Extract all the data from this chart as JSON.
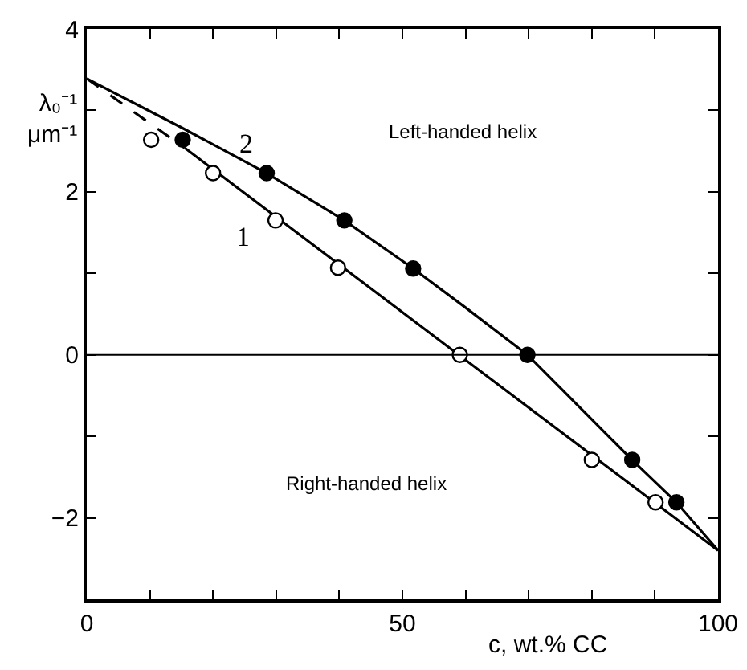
{
  "chart_data": {
    "type": "scatter",
    "ylabel": "λ₀⁻¹ μm⁻¹",
    "xlabel": "c, wt.% CC",
    "xlim": [
      0,
      100
    ],
    "ylim": [
      -3,
      4
    ],
    "xticks": [
      0,
      {
        "value": 10,
        "label": null
      },
      {
        "value": 20,
        "label": null
      },
      {
        "value": 30,
        "label": null
      },
      {
        "value": 40,
        "label": null
      },
      50,
      {
        "value": 60,
        "label": null
      },
      {
        "value": 70,
        "label": null
      },
      {
        "value": 80,
        "label": null
      },
      {
        "value": 90,
        "label": null
      },
      100
    ],
    "yticks": [
      {
        "value": -3,
        "label": null
      },
      -2,
      {
        "value": -1,
        "label": null
      },
      0,
      {
        "value": 1,
        "label": null
      },
      2,
      {
        "value": 3,
        "label": null
      },
      4
    ],
    "grid": false,
    "series": [
      {
        "type": "line",
        "color": "#000000",
        "line_style": "dashed",
        "marker": "none",
        "x": [
          0,
          15.5
        ],
        "values": [
          3.39,
          2.54
        ]
      },
      {
        "type": "line",
        "color": "#000000",
        "line_style": "solid",
        "marker": "none",
        "x": [
          15.5,
          59.1,
          100
        ],
        "values": [
          2.54,
          -0.01,
          -2.4
        ]
      },
      {
        "type": "line",
        "color": "#000000",
        "line_style": "solid",
        "marker": "none",
        "x": [
          0,
          15,
          28.5,
          40.8,
          51.7,
          60,
          69.8,
          86.4,
          93.4,
          100
        ],
        "values": [
          3.39,
          2.79,
          2.23,
          1.65,
          1.06,
          0.58,
          0,
          -1.29,
          -1.81,
          -2.4
        ]
      },
      {
        "color": "#ffffff",
        "marker": "circle",
        "x": [
          10.2,
          20,
          29.9,
          39.8,
          59.1,
          80,
          90.1
        ],
        "values": [
          2.64,
          2.23,
          1.65,
          1.07,
          0,
          -1.29,
          -1.81
        ]
      },
      {
        "color": "#000000",
        "marker": "circle",
        "x": [
          15.2,
          28.5,
          40.8,
          51.7,
          69.8,
          86.4,
          93.4
        ],
        "values": [
          2.64,
          2.23,
          1.65,
          1.06,
          0,
          -1.29,
          -1.81
        ]
      }
    ],
    "ref_lines": [
      {
        "axis": "y",
        "value": 0,
        "color": "#000000"
      }
    ],
    "annotations": [
      "1",
      "2",
      "Left-handed helix",
      "Right-handed helix"
    ]
  }
}
